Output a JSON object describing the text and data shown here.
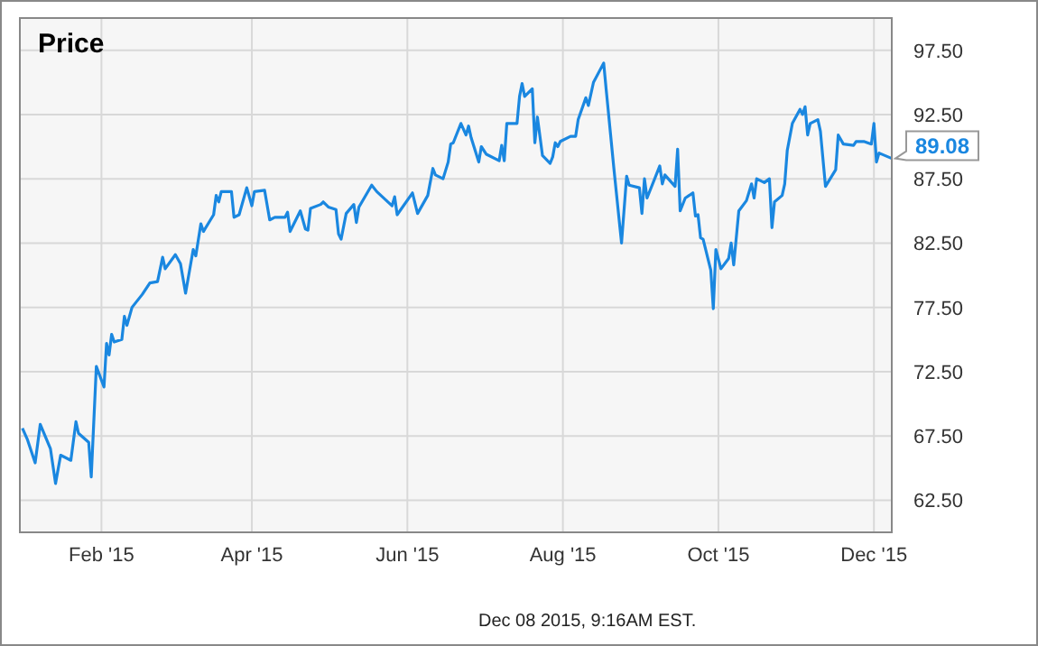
{
  "chart_data": {
    "type": "line",
    "title": "Price",
    "x": [
      "2015-01-01",
      "2015-01-03",
      "2015-01-06",
      "2015-01-08",
      "2015-01-12",
      "2015-01-14",
      "2015-01-16",
      "2015-01-20",
      "2015-01-22",
      "2015-01-23",
      "2015-01-27",
      "2015-01-28",
      "2015-01-30",
      "2015-02-02",
      "2015-02-03",
      "2015-02-04",
      "2015-02-05",
      "2015-02-06",
      "2015-02-09",
      "2015-02-10",
      "2015-02-11",
      "2015-02-13",
      "2015-02-17",
      "2015-02-20",
      "2015-02-23",
      "2015-02-25",
      "2015-02-26",
      "2015-03-02",
      "2015-03-04",
      "2015-03-06",
      "2015-03-09",
      "2015-03-10",
      "2015-03-12",
      "2015-03-13",
      "2015-03-17",
      "2015-03-18",
      "2015-03-19",
      "2015-03-20",
      "2015-03-24",
      "2015-03-25",
      "2015-03-27",
      "2015-03-30",
      "2015-04-01",
      "2015-04-02",
      "2015-04-06",
      "2015-04-08",
      "2015-04-10",
      "2015-04-14",
      "2015-04-15",
      "2015-04-16",
      "2015-04-20",
      "2015-04-22",
      "2015-04-23",
      "2015-04-24",
      "2015-04-28",
      "2015-04-29",
      "2015-05-01",
      "2015-05-04",
      "2015-05-05",
      "2015-05-06",
      "2015-05-08",
      "2015-05-11",
      "2015-05-12",
      "2015-05-13",
      "2015-05-18",
      "2015-05-20",
      "2015-05-26",
      "2015-05-27",
      "2015-05-28",
      "2015-06-03",
      "2015-06-05",
      "2015-06-09",
      "2015-06-11",
      "2015-06-12",
      "2015-06-15",
      "2015-06-17",
      "2015-06-18",
      "2015-06-19",
      "2015-06-22",
      "2015-06-24",
      "2015-06-25",
      "2015-06-26",
      "2015-06-29",
      "2015-06-30",
      "2015-07-02",
      "2015-07-07",
      "2015-07-08",
      "2015-07-09",
      "2015-07-10",
      "2015-07-14",
      "2015-07-15",
      "2015-07-16",
      "2015-07-17",
      "2015-07-20",
      "2015-07-21",
      "2015-07-22",
      "2015-07-24",
      "2015-07-27",
      "2015-07-28",
      "2015-07-29",
      "2015-07-30",
      "2015-07-31",
      "2015-08-04",
      "2015-08-06",
      "2015-08-07",
      "2015-08-10",
      "2015-08-11",
      "2015-08-13",
      "2015-08-17",
      "2015-08-18",
      "2015-08-21",
      "2015-08-24",
      "2015-08-26",
      "2015-08-27",
      "2015-08-31",
      "2015-09-01",
      "2015-09-02",
      "2015-09-03",
      "2015-09-08",
      "2015-09-09",
      "2015-09-10",
      "2015-09-14",
      "2015-09-15",
      "2015-09-16",
      "2015-09-18",
      "2015-09-21",
      "2015-09-22",
      "2015-09-23",
      "2015-09-24",
      "2015-09-25",
      "2015-09-28",
      "2015-09-29",
      "2015-09-30",
      "2015-10-02",
      "2015-10-05",
      "2015-10-06",
      "2015-10-07",
      "2015-10-09",
      "2015-10-12",
      "2015-10-14",
      "2015-10-15",
      "2015-10-16",
      "2015-10-19",
      "2015-10-21",
      "2015-10-22",
      "2015-10-23",
      "2015-10-26",
      "2015-10-27",
      "2015-10-28",
      "2015-10-30",
      "2015-11-02",
      "2015-11-03",
      "2015-11-04",
      "2015-11-05",
      "2015-11-06",
      "2015-11-09",
      "2015-11-10",
      "2015-11-12",
      "2015-11-16",
      "2015-11-17",
      "2015-11-19",
      "2015-11-23",
      "2015-11-24",
      "2015-11-27",
      "2015-11-30",
      "2015-12-01",
      "2015-12-02",
      "2015-12-03",
      "2015-12-08"
    ],
    "series": [
      {
        "color": "#1a87e0",
        "values": [
          68.1,
          67.2,
          65.4,
          68.4,
          66.5,
          63.8,
          66.0,
          65.6,
          68.6,
          67.7,
          67.0,
          64.3,
          72.9,
          71.3,
          74.7,
          73.8,
          75.4,
          74.8,
          75.0,
          76.8,
          76.1,
          77.5,
          78.5,
          79.4,
          79.5,
          81.4,
          80.5,
          81.6,
          80.9,
          78.6,
          82.0,
          81.5,
          84.0,
          83.4,
          84.7,
          86.2,
          85.7,
          86.5,
          86.5,
          84.5,
          84.7,
          86.8,
          85.4,
          86.5,
          86.6,
          84.3,
          84.5,
          84.5,
          84.9,
          83.4,
          85.0,
          83.6,
          83.5,
          85.2,
          85.5,
          85.7,
          85.3,
          85.1,
          83.2,
          82.8,
          84.8,
          85.5,
          84.1,
          85.3,
          87.0,
          86.5,
          85.4,
          86.1,
          84.7,
          86.4,
          84.8,
          86.2,
          88.3,
          87.8,
          87.5,
          88.8,
          90.2,
          90.3,
          91.8,
          90.9,
          91.6,
          90.7,
          88.8,
          90.0,
          89.4,
          88.9,
          90.1,
          88.9,
          91.8,
          91.8,
          93.9,
          94.9,
          93.9,
          94.5,
          90.3,
          92.3,
          89.3,
          88.7,
          89.2,
          90.3,
          90.0,
          90.4,
          90.8,
          90.8,
          92.1,
          93.8,
          93.2,
          95.0,
          96.5,
          94.4,
          88.3,
          82.5,
          87.7,
          87.0,
          86.8,
          84.8,
          87.5,
          86.0,
          88.5,
          87.1,
          87.8,
          86.9,
          89.8,
          85.0,
          86.0,
          86.4,
          84.6,
          84.7,
          82.9,
          82.8,
          80.4,
          77.4,
          82.0,
          80.5,
          81.3,
          82.5,
          80.8,
          85.0,
          85.8,
          87.1,
          86.0,
          87.5,
          87.2,
          87.5,
          83.7,
          85.7,
          86.2,
          87.1,
          89.7,
          91.8,
          92.9,
          92.5,
          93.1,
          90.9,
          91.8,
          92.1,
          91.2,
          86.9,
          88.2,
          90.9,
          90.2,
          90.1,
          90.4,
          90.4,
          90.2,
          91.8,
          88.8,
          89.5,
          89.08
        ]
      }
    ],
    "xlim": [
      "2014-12-31",
      "2015-12-08"
    ],
    "xticks": [
      {
        "value": "2015-02-01",
        "label": "Feb '15"
      },
      {
        "value": "2015-04-01",
        "label": "Apr '15"
      },
      {
        "value": "2015-06-01",
        "label": "Jun '15"
      },
      {
        "value": "2015-08-01",
        "label": "Aug '15"
      },
      {
        "value": "2015-10-01",
        "label": "Oct '15"
      },
      {
        "value": "2015-12-01",
        "label": "Dec '15"
      }
    ],
    "ylim": [
      60,
      100
    ],
    "yticks": [
      {
        "value": 62.5,
        "label": "62.50"
      },
      {
        "value": 67.5,
        "label": "67.50"
      },
      {
        "value": 72.5,
        "label": "72.50"
      },
      {
        "value": 77.5,
        "label": "77.50"
      },
      {
        "value": 82.5,
        "label": "82.50"
      },
      {
        "value": 87.5,
        "label": "87.50"
      },
      {
        "value": 92.5,
        "label": "92.50"
      },
      {
        "value": 97.5,
        "label": "97.50"
      }
    ],
    "grid": true,
    "annotations": [
      {
        "text": "89.08",
        "x": "2015-12-08",
        "y": 89.08
      },
      "Dec 08 2015, 9:16AM EST."
    ]
  }
}
